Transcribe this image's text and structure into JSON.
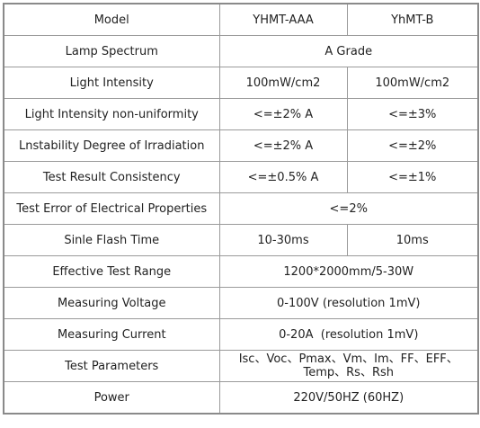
{
  "table": {
    "rows": [
      [
        "Model",
        "YHMT-AAA",
        "YhMT-B"
      ],
      [
        "Lamp Spectrum",
        "A Grade"
      ],
      [
        "Light Intensity",
        "100mW/cm2",
        "100mW/cm2"
      ],
      [
        "Light Intensity non-uniformity",
        "<=±2% A",
        "<=±3%"
      ],
      [
        "Lnstability Degree of Irradiation",
        "<=±2% A",
        "<=±2%"
      ],
      [
        "Test Result Consistency",
        "<=±0.5% A",
        "<=±1%"
      ],
      [
        "Test Error of Electrical Properties",
        "<=2%"
      ],
      [
        "Sinle Flash Time",
        "10-30ms",
        "10ms"
      ],
      [
        "Effective Test Range",
        "1200*2000mm/5-30W"
      ],
      [
        "Measuring Voltage",
        "0-100V (resolution 1mV)"
      ],
      [
        "Measuring Current",
        "0-20A  (resolution 1mV)"
      ],
      [
        "Test Parameters",
        [
          "Isc、Voc、Pmax、Vm、Im、FF、EFF、",
          "Temp、Rs、Rsh"
        ]
      ],
      [
        "Power",
        "220V/50HZ (60HZ)"
      ]
    ]
  }
}
